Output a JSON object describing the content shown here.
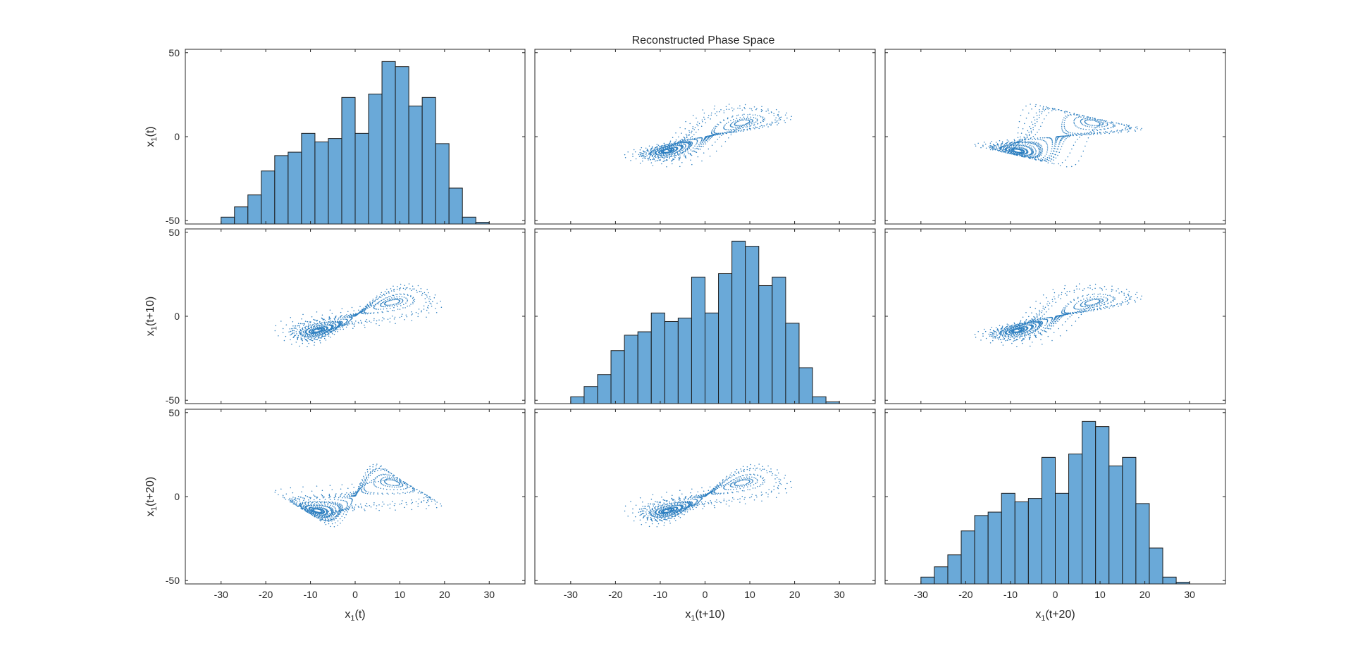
{
  "figure": {
    "title": "Reconstructed Phase Space",
    "colors": {
      "bar_fill": "#6aa9d8",
      "bar_edge": "#1a1a1a",
      "point": "#2d7fc0",
      "axes": "#262626"
    }
  },
  "chart_data": {
    "type": "scatter-matrix",
    "title": "Reconstructed Phase Space",
    "variables": [
      {
        "base": "x",
        "sub": "1",
        "arg": "(t)"
      },
      {
        "base": "x",
        "sub": "1",
        "arg": "(t+10)"
      },
      {
        "base": "x",
        "sub": "1",
        "arg": "(t+20)"
      }
    ],
    "x_axis": {
      "range": [
        -38,
        38
      ],
      "ticks": [
        -30,
        -20,
        -10,
        0,
        10,
        20,
        30
      ]
    },
    "y_axis": {
      "range": [
        -52,
        52
      ],
      "ticks": [
        -50,
        0,
        50
      ]
    },
    "histogram": {
      "bin_width": 3,
      "bin_start": -30,
      "counts": [
        4,
        10,
        17,
        31,
        40,
        42,
        53,
        48,
        50,
        74,
        53,
        76,
        95,
        92,
        69,
        74,
        47,
        21,
        4,
        1
      ]
    },
    "histograms": [
      {
        "row": 1,
        "col": 1,
        "counts": [
          4,
          10,
          17,
          31,
          40,
          42,
          53,
          48,
          50,
          74,
          53,
          76,
          95,
          92,
          69,
          74,
          47,
          21,
          4,
          1
        ]
      },
      {
        "row": 2,
        "col": 2,
        "counts": [
          4,
          10,
          17,
          31,
          40,
          42,
          53,
          48,
          50,
          74,
          53,
          76,
          95,
          92,
          69,
          74,
          47,
          21,
          4,
          1
        ]
      },
      {
        "row": 3,
        "col": 3,
        "counts": [
          4,
          10,
          17,
          31,
          40,
          42,
          53,
          48,
          50,
          74,
          53,
          76,
          95,
          92,
          69,
          74,
          47,
          21,
          4,
          1
        ]
      }
    ],
    "scatter": {
      "system": "Lorenz attractor (x component), delay embedding",
      "lags": [
        0,
        10,
        20
      ]
    }
  }
}
